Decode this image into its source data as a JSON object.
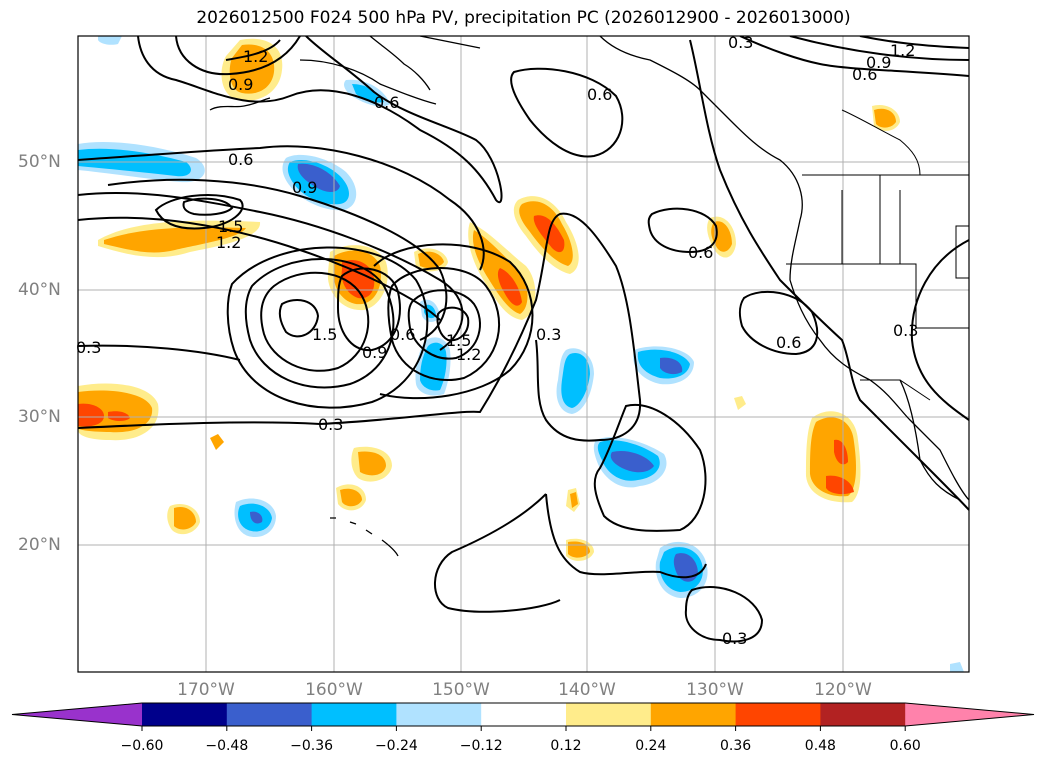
{
  "title": "2026012500 F024 500 hPa PV, precipitation PC (2026012900 - 2026013000)",
  "lat_labels": [
    "50°N",
    "40°N",
    "30°N",
    "20°N"
  ],
  "lon_labels": [
    "170°W",
    "160°W",
    "150°W",
    "140°W",
    "130°W",
    "120°W"
  ],
  "contour_labels": [
    "1.2",
    "0.9",
    "0.6",
    "0.6",
    "0.6",
    "0.9",
    "1.5",
    "1.2",
    "0.3",
    "0.3",
    "1.5",
    "0.9",
    "0.6",
    "1.5",
    "1.2",
    "0.3",
    "0.6",
    "0.6",
    "0.3",
    "0.3",
    "1.2",
    "0.9",
    "0.6",
    "0.3"
  ],
  "colorbar": {
    "ticks": [
      "−0.60",
      "−0.48",
      "−0.36",
      "−0.24",
      "−0.12",
      "0.12",
      "0.24",
      "0.36",
      "0.48",
      "0.60"
    ],
    "colors": [
      "#9932cc",
      "#00008b",
      "#3a5fcd",
      "#00bfff",
      "#b0e2ff",
      "#ffffff",
      "#ffec8b",
      "#ffa500",
      "#ff4500",
      "#b22222",
      "#ff82ab"
    ]
  }
}
